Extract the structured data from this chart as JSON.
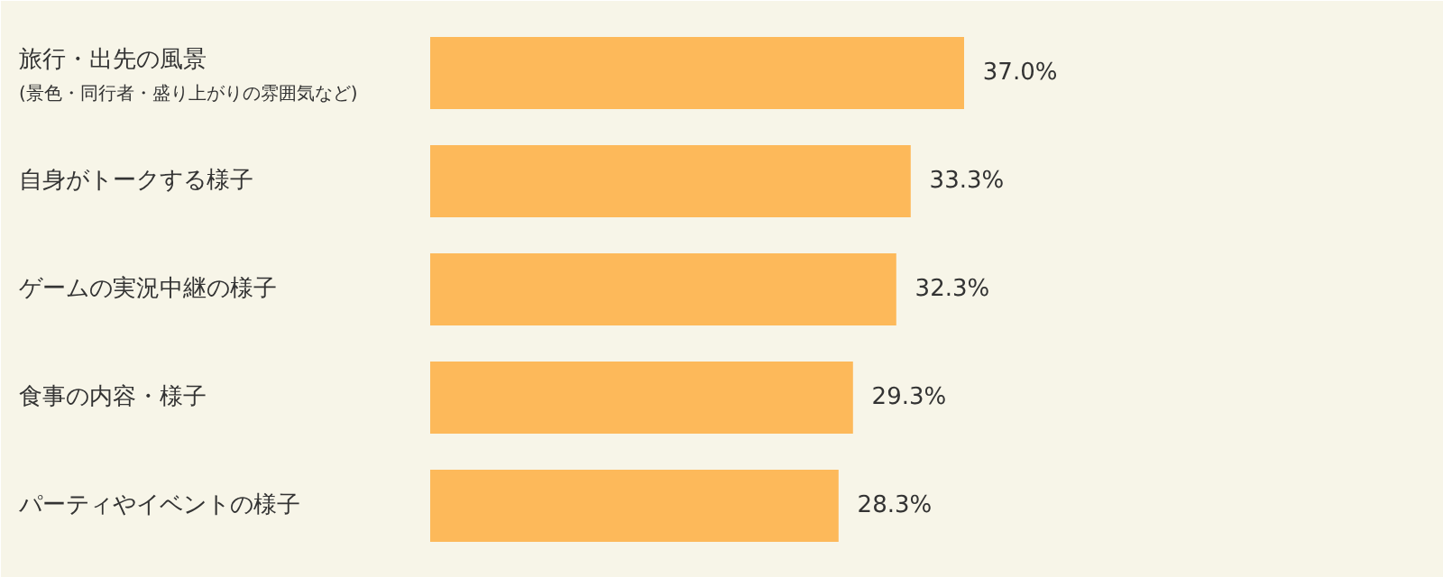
{
  "chart_data": {
    "type": "bar",
    "orientation": "horizontal",
    "categories": [
      "旅行・出先の風景\n(景色・同行者・盛り上がりの雰囲気など)",
      "自身がトークする様子",
      "ゲームの実況中継の様子",
      "食事の内容・様子",
      "パーティやイベントの様子"
    ],
    "values": [
      37.0,
      33.3,
      32.3,
      29.3,
      28.3
    ],
    "value_labels": [
      "37.0%",
      "33.3%",
      "32.3%",
      "29.3%",
      "28.3%"
    ],
    "color": "#fdb95a"
  }
}
